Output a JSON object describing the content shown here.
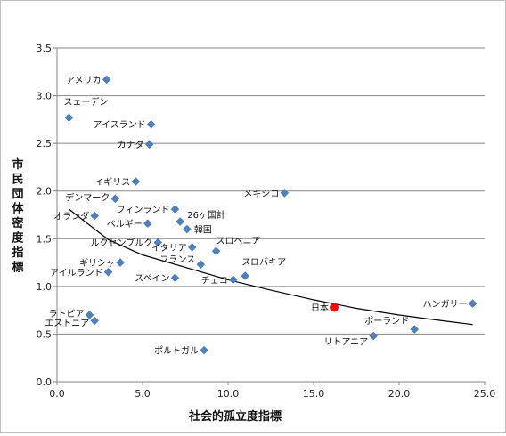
{
  "chart_data": {
    "type": "scatter",
    "title": "",
    "xlabel": "社会的孤立度指標",
    "ylabel": "市民団体密度指標",
    "xlim": [
      0,
      25
    ],
    "ylim": [
      0,
      3.5
    ],
    "xticks": [
      "0.0",
      "5.0",
      "10.0",
      "15.0",
      "20.0",
      "25.0"
    ],
    "yticks": [
      "0.0",
      "0.5",
      "1.0",
      "1.5",
      "2.0",
      "2.5",
      "3.0",
      "3.5"
    ],
    "grid": "horizontal",
    "colors": {
      "marker": "#4f81bd",
      "highlight": "#ff0000",
      "trend": "#000000",
      "grid": "#868686"
    },
    "points": [
      {
        "label": "アメリカ",
        "x": 2.9,
        "y": 3.17
      },
      {
        "label": "スェーデン",
        "x": 0.7,
        "y": 2.77
      },
      {
        "label": "アイスランド",
        "x": 5.5,
        "y": 2.7
      },
      {
        "label": "カナダ",
        "x": 5.4,
        "y": 2.49
      },
      {
        "label": "イギリス",
        "x": 4.6,
        "y": 2.1
      },
      {
        "label": "メキシコ",
        "x": 13.3,
        "y": 1.98
      },
      {
        "label": "デンマーク",
        "x": 3.4,
        "y": 1.92
      },
      {
        "label": "フィンランド",
        "x": 6.9,
        "y": 1.81
      },
      {
        "label": "オランダ",
        "x": 2.2,
        "y": 1.74
      },
      {
        "label": "26ヶ国計",
        "x": 7.2,
        "y": 1.68
      },
      {
        "label": "ベルギー",
        "x": 5.3,
        "y": 1.66
      },
      {
        "label": "韓国",
        "x": 7.6,
        "y": 1.6
      },
      {
        "label": "ルクセンブルク",
        "x": 5.9,
        "y": 1.46
      },
      {
        "label": "イタリア",
        "x": 7.9,
        "y": 1.41
      },
      {
        "label": "スロベニア",
        "x": 9.3,
        "y": 1.37
      },
      {
        "label": "ギリシャ",
        "x": 3.7,
        "y": 1.25
      },
      {
        "label": "フランス",
        "x": 8.4,
        "y": 1.23
      },
      {
        "label": "スロバキア",
        "x": 11.0,
        "y": 1.11
      },
      {
        "label": "アイルランド",
        "x": 3.0,
        "y": 1.15
      },
      {
        "label": "スペイン",
        "x": 6.9,
        "y": 1.09
      },
      {
        "label": "チェコ",
        "x": 10.3,
        "y": 1.07
      },
      {
        "label": "ハンガリー",
        "x": 24.3,
        "y": 0.82
      },
      {
        "label": "日本",
        "x": 16.2,
        "y": 0.78,
        "highlight": true
      },
      {
        "label": "ラトビア",
        "x": 1.9,
        "y": 0.7
      },
      {
        "label": "エストニア",
        "x": 2.2,
        "y": 0.64
      },
      {
        "label": "ポーランド",
        "x": 20.9,
        "y": 0.55
      },
      {
        "label": "リトアニア",
        "x": 18.5,
        "y": 0.48
      },
      {
        "label": "ポルトガル",
        "x": 8.6,
        "y": 0.33
      }
    ],
    "trendline": {
      "type": "power",
      "x": [
        0.7,
        3,
        5,
        7.5,
        10,
        12.5,
        15,
        17.5,
        20,
        22.5,
        24.3
      ],
      "y": [
        1.81,
        1.49,
        1.33,
        1.2,
        1.07,
        0.96,
        0.86,
        0.77,
        0.7,
        0.64,
        0.6
      ]
    }
  }
}
